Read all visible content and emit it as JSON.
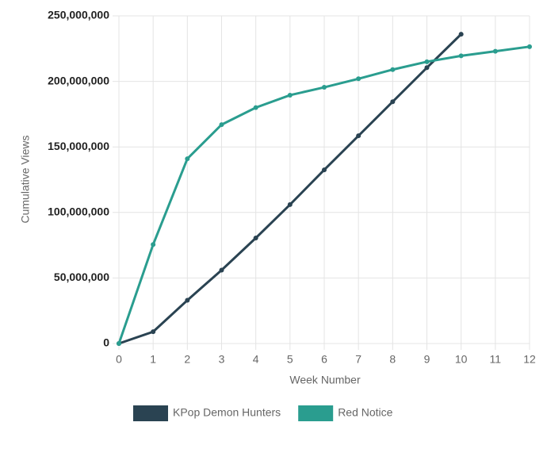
{
  "chart_data": {
    "type": "line",
    "x_label": "Week Number",
    "y_label": "Cumulative Views",
    "x": [
      0,
      1,
      2,
      3,
      4,
      5,
      6,
      7,
      8,
      9,
      10,
      11,
      12
    ],
    "xlim": [
      0,
      12
    ],
    "xticks": [
      0,
      1,
      2,
      3,
      4,
      5,
      6,
      7,
      8,
      9,
      10,
      11,
      12
    ],
    "ylim": [
      0,
      250000000
    ],
    "yticks": [
      0,
      {
        "value": 50000000,
        "label": "50,000,000"
      },
      {
        "value": 100000000,
        "label": "100,000,000"
      },
      {
        "value": 150000000,
        "label": "150,000,000"
      },
      {
        "value": 200000000,
        "label": "200,000,000"
      },
      {
        "value": 250000000,
        "label": "250,000,000"
      }
    ],
    "grid": true,
    "series": [
      {
        "name": "KPop Demon Hunters",
        "color": "#2a4352",
        "values": [
          0,
          9000000,
          33000000,
          56000000,
          80500000,
          106000000,
          132500000,
          158500000,
          184500000,
          210500000,
          236000000,
          null,
          null
        ]
      },
      {
        "name": "Red Notice",
        "color": "#2a9d8f",
        "values": [
          0,
          75500000,
          141000000,
          167000000,
          180000000,
          189500000,
          195500000,
          202000000,
          209000000,
          215000000,
          219500000,
          223000000,
          226500000
        ]
      }
    ]
  }
}
